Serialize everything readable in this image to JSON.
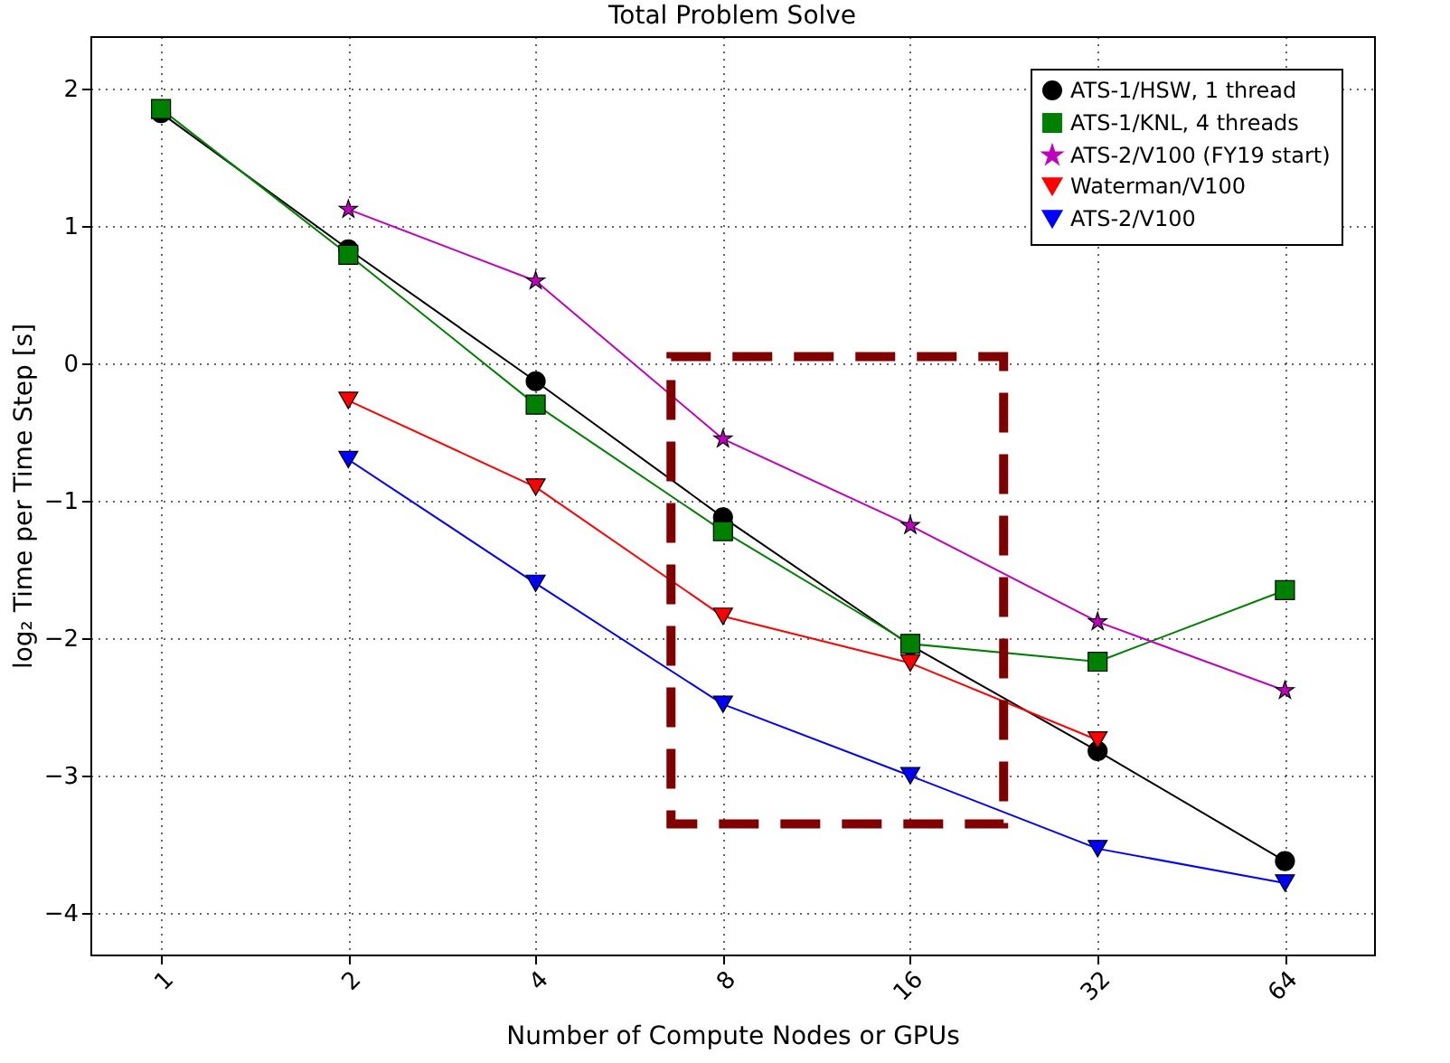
{
  "chart_data": {
    "type": "line",
    "title": "Total Problem Solve",
    "xlabel": "Number of Compute Nodes or GPUs",
    "ylabel": "log₂ Time per Time Step [s]",
    "x": [
      1,
      2,
      4,
      8,
      16,
      32,
      64
    ],
    "series": [
      {
        "name": "ATS-1/HSW, 1 thread",
        "color": "#000000",
        "marker": "circle",
        "values": [
          1.82,
          0.83,
          -0.13,
          -1.12,
          -2.05,
          -2.82,
          -3.62
        ]
      },
      {
        "name": "ATS-1/KNL, 4 threads",
        "color": "#008000",
        "marker": "square",
        "values": [
          1.85,
          0.79,
          -0.3,
          -1.22,
          -2.04,
          -2.17,
          -1.65
        ]
      },
      {
        "name": "ATS-2/V100 (FY19 start)",
        "color": "#bf00bf",
        "marker": "star",
        "values": [
          null,
          1.12,
          0.6,
          -0.55,
          -1.18,
          -1.88,
          -2.38
        ]
      },
      {
        "name": "Waterman/V100",
        "color": "#ff0000",
        "marker": "triangle-down",
        "values": [
          null,
          -0.27,
          -0.9,
          -1.84,
          -2.18,
          -2.74,
          null
        ]
      },
      {
        "name": "ATS-2/V100",
        "color": "#0000ff",
        "marker": "triangle-down",
        "values": [
          null,
          -0.7,
          -1.6,
          -2.48,
          -3.0,
          -3.53,
          -3.78
        ]
      }
    ],
    "xlim": [
      0.77,
      89
    ],
    "xticks": [
      1,
      2,
      4,
      8,
      16,
      32,
      64
    ],
    "ylim": [
      -4.3,
      2.38
    ],
    "yticks": [
      -4,
      -3,
      -2,
      -1,
      0,
      1,
      2
    ],
    "log": "x",
    "grid": true,
    "legend": "top right",
    "line_style": "solid"
  }
}
